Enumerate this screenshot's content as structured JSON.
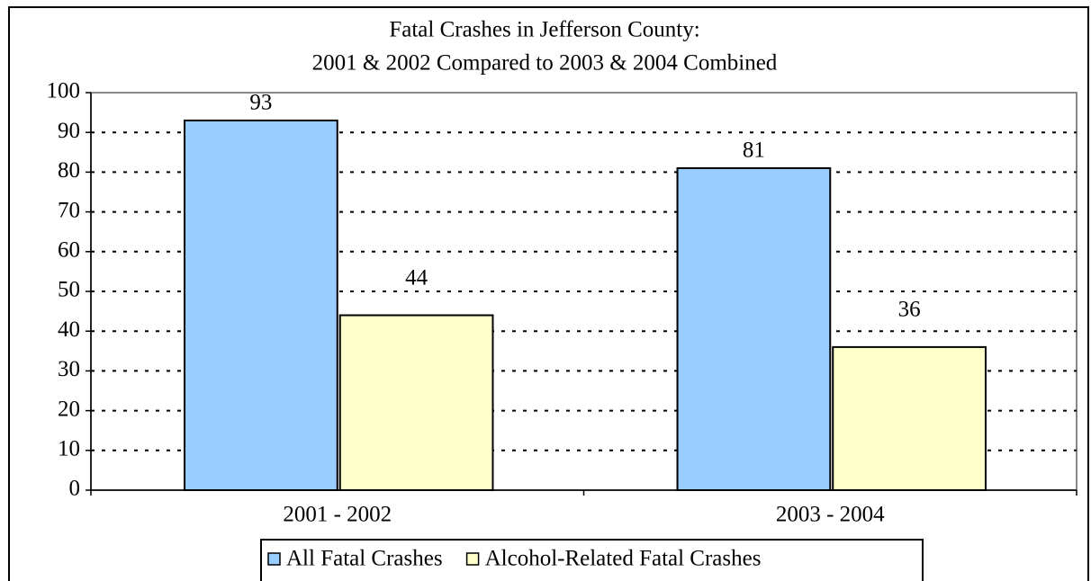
{
  "chart_data": {
    "type": "bar",
    "title": "Fatal Crashes in Jefferson County:",
    "subtitle": "2001 & 2002 Compared to 2003 & 2004 Combined",
    "categories": [
      "2001 - 2002",
      "2003 - 2004"
    ],
    "series": [
      {
        "name": "All Fatal Crashes",
        "color": "#99ccff",
        "values": [
          93,
          81
        ]
      },
      {
        "name": "Alcohol-Related Fatal Crashes",
        "color": "#ffffcc",
        "values": [
          44,
          36
        ]
      }
    ],
    "ylim": [
      0,
      100
    ],
    "yticks": [
      0,
      10,
      20,
      30,
      40,
      50,
      60,
      70,
      80,
      90,
      100
    ],
    "grid": true,
    "legend": "bottom"
  }
}
